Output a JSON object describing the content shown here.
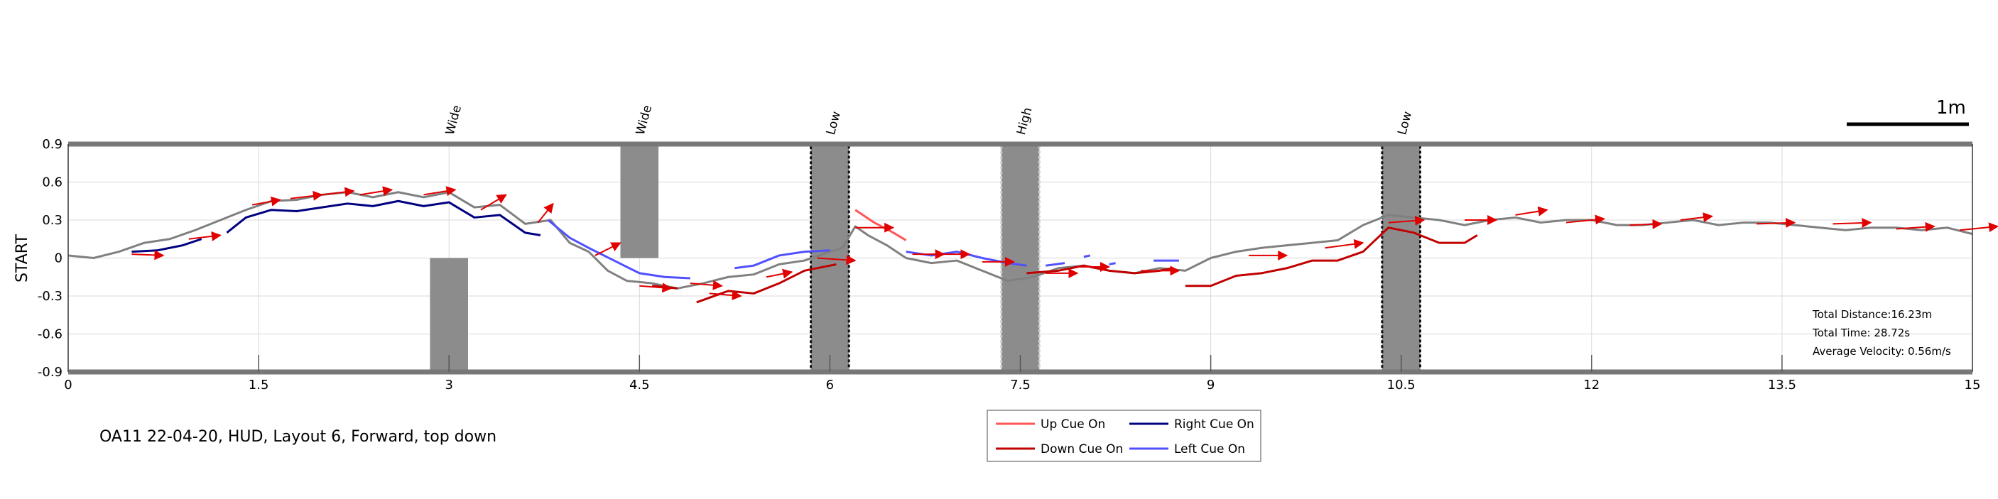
{
  "chart_data": {
    "type": "line",
    "caption": "OA11 22-04-20, HUD, Layout 6, Forward, top down",
    "ylabel": "START",
    "xlim": [
      0,
      15
    ],
    "ylim": [
      -0.9,
      0.9
    ],
    "x_ticks": [
      "0",
      "1.5",
      "3",
      "4.5",
      "6",
      "7.5",
      "9",
      "10.5",
      "12",
      "13.5",
      "15"
    ],
    "y_ticks": [
      "0.9",
      "0.6",
      "0.3",
      "0",
      "-0.3",
      "-0.6",
      "-0.9"
    ],
    "scale_bar_label": "1m",
    "stats": {
      "distance": "Total Distance:16.23m",
      "time": "Total Time: 28.72s",
      "velocity": "Average Velocity: 0.56m/s"
    },
    "legend": [
      {
        "label": "Up Cue On",
        "color": "#ff5555"
      },
      {
        "label": "Right Cue On",
        "color": "#000080"
      },
      {
        "label": "Down Cue On",
        "color": "#c00000"
      },
      {
        "label": "Left Cue On",
        "color": "#5050ff"
      }
    ],
    "obstacles": [
      {
        "label": "Wide",
        "x": [
          2.85,
          3.15
        ],
        "y": [
          -0.9,
          0.0
        ],
        "style": "solid"
      },
      {
        "label": "Wide",
        "x": [
          4.35,
          4.65
        ],
        "y": [
          0.0,
          0.9
        ],
        "style": "solid"
      },
      {
        "label": "Low",
        "x": [
          5.85,
          6.15
        ],
        "y": [
          -0.9,
          0.9
        ],
        "style": "dark"
      },
      {
        "label": "High",
        "x": [
          7.35,
          7.65
        ],
        "y": [
          -0.9,
          0.9
        ],
        "style": "light"
      },
      {
        "label": "Low",
        "x": [
          10.35,
          10.65
        ],
        "y": [
          -0.9,
          0.9
        ],
        "style": "dark"
      }
    ],
    "path": {
      "color": "#808080",
      "x": [
        0,
        0.2,
        0.4,
        0.6,
        0.8,
        1.0,
        1.2,
        1.4,
        1.6,
        1.8,
        2.0,
        2.2,
        2.4,
        2.6,
        2.8,
        3.0,
        3.2,
        3.4,
        3.6,
        3.8,
        3.95,
        4.1,
        4.25,
        4.4,
        4.6,
        4.8,
        5.0,
        5.2,
        5.4,
        5.6,
        5.8,
        6.0,
        6.1,
        6.2,
        6.3,
        6.45,
        6.6,
        6.8,
        7.0,
        7.2,
        7.4,
        7.6,
        7.8,
        8.0,
        8.2,
        8.4,
        8.6,
        8.8,
        9.0,
        9.2,
        9.4,
        9.6,
        9.8,
        10.0,
        10.2,
        10.4,
        10.6,
        10.8,
        11.0,
        11.2,
        11.4,
        11.6,
        11.8,
        12.0,
        12.2,
        12.4,
        12.6,
        12.8,
        13.0,
        13.2,
        13.4,
        13.6,
        13.8,
        14.0,
        14.2,
        14.4,
        14.6,
        14.8,
        15.0
      ],
      "y": [
        0.02,
        0.0,
        0.05,
        0.12,
        0.15,
        0.22,
        0.3,
        0.38,
        0.45,
        0.46,
        0.5,
        0.52,
        0.48,
        0.52,
        0.48,
        0.52,
        0.4,
        0.42,
        0.27,
        0.3,
        0.12,
        0.05,
        -0.1,
        -0.18,
        -0.2,
        -0.24,
        -0.2,
        -0.15,
        -0.13,
        -0.05,
        -0.02,
        0.05,
        0.08,
        0.25,
        0.18,
        0.1,
        0.0,
        -0.04,
        -0.02,
        -0.1,
        -0.18,
        -0.15,
        -0.08,
        -0.06,
        -0.1,
        -0.12,
        -0.08,
        -0.1,
        0.0,
        0.05,
        0.08,
        0.1,
        0.12,
        0.14,
        0.26,
        0.34,
        0.32,
        0.3,
        0.26,
        0.3,
        0.32,
        0.28,
        0.3,
        0.3,
        0.26,
        0.26,
        0.28,
        0.3,
        0.26,
        0.28,
        0.28,
        0.26,
        0.24,
        0.22,
        0.24,
        0.24,
        0.22,
        0.24,
        0.19
      ]
    },
    "series": [
      {
        "name": "Right Cue On",
        "color": "#000080",
        "segments": [
          {
            "x": [
              0.5,
              0.7,
              0.9,
              1.05
            ],
            "y": [
              0.05,
              0.06,
              0.1,
              0.15
            ]
          },
          {
            "x": [
              1.25,
              1.4,
              1.6,
              1.8,
              2.0,
              2.2,
              2.4,
              2.6,
              2.8,
              3.0,
              3.2,
              3.4,
              3.6,
              3.72
            ],
            "y": [
              0.2,
              0.32,
              0.38,
              0.37,
              0.4,
              0.43,
              0.41,
              0.45,
              0.41,
              0.44,
              0.32,
              0.34,
              0.2,
              0.18
            ]
          }
        ]
      },
      {
        "name": "Left Cue On",
        "color": "#5050ff",
        "segments": [
          {
            "x": [
              3.78,
              3.95,
              4.1,
              4.3,
              4.5,
              4.7,
              4.9
            ],
            "y": [
              0.3,
              0.16,
              0.08,
              -0.02,
              -0.12,
              -0.15,
              -0.16
            ]
          },
          {
            "x": [
              5.25,
              5.4,
              5.6,
              5.8,
              6.0
            ],
            "y": [
              -0.08,
              -0.06,
              0.02,
              0.05,
              0.06
            ]
          },
          {
            "x": [
              6.6,
              6.8,
              7.0,
              7.2,
              7.4,
              7.55
            ],
            "y": [
              0.05,
              0.02,
              0.05,
              0.0,
              -0.04,
              -0.06
            ]
          },
          {
            "x": [
              7.7,
              7.85
            ],
            "y": [
              -0.06,
              -0.04
            ]
          },
          {
            "x": [
              8.0,
              8.05
            ],
            "y": [
              0.01,
              0.02
            ]
          },
          {
            "x": [
              8.2,
              8.25
            ],
            "y": [
              -0.05,
              -0.04
            ]
          },
          {
            "x": [
              8.55,
              8.75
            ],
            "y": [
              -0.02,
              -0.02
            ]
          }
        ]
      },
      {
        "name": "Down Cue On",
        "color": "#c00000",
        "segments": [
          {
            "x": [
              4.6,
              4.8
            ],
            "y": [
              -0.22,
              -0.24
            ]
          },
          {
            "x": [
              4.95,
              5.2,
              5.4,
              5.6,
              5.8,
              6.05
            ],
            "y": [
              -0.35,
              -0.26,
              -0.28,
              -0.2,
              -0.1,
              -0.05
            ]
          },
          {
            "x": [
              7.55,
              7.8,
              8.0,
              8.2,
              8.4,
              8.6,
              8.7
            ],
            "y": [
              -0.12,
              -0.1,
              -0.06,
              -0.1,
              -0.12,
              -0.1,
              -0.08
            ]
          },
          {
            "x": [
              8.8,
              9.0,
              9.2,
              9.4,
              9.6,
              9.8,
              10.0,
              10.2,
              10.4,
              10.6,
              10.8,
              11.0,
              11.1
            ],
            "y": [
              -0.22,
              -0.22,
              -0.14,
              -0.12,
              -0.08,
              -0.02,
              -0.02,
              0.05,
              0.24,
              0.2,
              0.12,
              0.12,
              0.18
            ]
          }
        ]
      },
      {
        "name": "Up Cue On",
        "color": "#ff5555",
        "segments": [
          {
            "x": [
              6.2,
              6.35,
              6.5,
              6.6
            ],
            "y": [
              0.38,
              0.28,
              0.2,
              0.14
            ]
          }
        ]
      }
    ],
    "arrows": [
      [
        0.5,
        0.03,
        0.25,
        -0.01
      ],
      [
        0.95,
        0.15,
        0.25,
        0.03
      ],
      [
        1.45,
        0.42,
        0.22,
        0.04
      ],
      [
        1.75,
        0.47,
        0.25,
        0.03
      ],
      [
        2.0,
        0.5,
        0.25,
        0.03
      ],
      [
        2.3,
        0.5,
        0.25,
        0.04
      ],
      [
        2.8,
        0.5,
        0.25,
        0.04
      ],
      [
        3.25,
        0.38,
        0.2,
        0.12
      ],
      [
        3.7,
        0.28,
        0.12,
        0.15
      ],
      [
        4.15,
        0.02,
        0.2,
        0.1
      ],
      [
        4.5,
        -0.22,
        0.25,
        -0.02
      ],
      [
        4.9,
        -0.2,
        0.25,
        -0.02
      ],
      [
        5.05,
        -0.28,
        0.25,
        -0.02
      ],
      [
        5.5,
        -0.15,
        0.2,
        0.04
      ],
      [
        5.9,
        0.0,
        0.3,
        -0.02
      ],
      [
        6.2,
        0.24,
        0.3,
        0.0
      ],
      [
        6.65,
        0.03,
        0.25,
        0.0
      ],
      [
        6.8,
        0.03,
        0.3,
        0.0
      ],
      [
        7.2,
        -0.03,
        0.25,
        0.0
      ],
      [
        7.7,
        -0.12,
        0.25,
        0.0
      ],
      [
        7.95,
        -0.07,
        0.25,
        0.0
      ],
      [
        8.45,
        -0.1,
        0.3,
        0.0
      ],
      [
        9.3,
        0.02,
        0.3,
        0.0
      ],
      [
        9.9,
        0.08,
        0.3,
        0.04
      ],
      [
        10.4,
        0.28,
        0.28,
        0.02
      ],
      [
        11.0,
        0.3,
        0.25,
        0.0
      ],
      [
        11.4,
        0.34,
        0.25,
        0.04
      ],
      [
        11.8,
        0.28,
        0.3,
        0.03
      ],
      [
        12.3,
        0.26,
        0.25,
        0.01
      ],
      [
        12.7,
        0.3,
        0.25,
        0.03
      ],
      [
        13.3,
        0.27,
        0.3,
        0.01
      ],
      [
        13.9,
        0.27,
        0.3,
        0.01
      ],
      [
        14.4,
        0.23,
        0.3,
        0.02
      ],
      [
        14.9,
        0.22,
        0.3,
        0.03
      ]
    ]
  }
}
